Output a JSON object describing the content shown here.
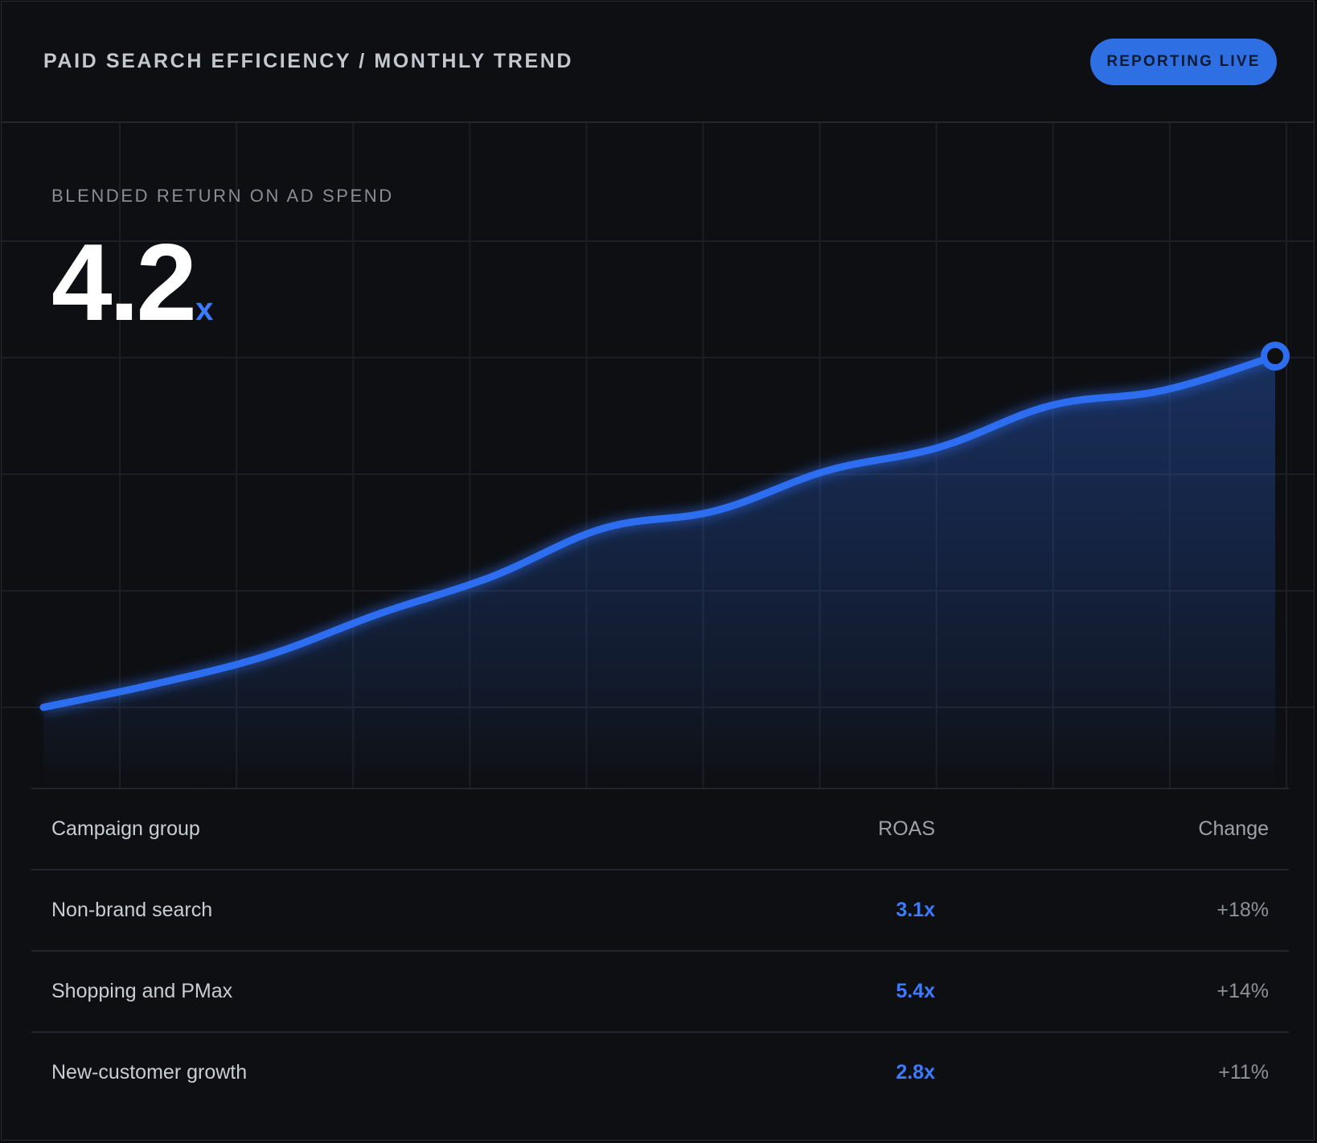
{
  "header": {
    "title": "PAID SEARCH EFFICIENCY / MONTHLY TREND",
    "badge_label": "REPORTING LIVE"
  },
  "kpi": {
    "label": "BLENDED RETURN ON AD SPEND",
    "value": "4.2",
    "unit": "x"
  },
  "colors": {
    "accent": "#2f6fe4",
    "line": "#2d6ef0",
    "background": "#0e0f12",
    "grid": "#1c1e23"
  },
  "chart_data": {
    "type": "area",
    "x": [
      0,
      1,
      2,
      3,
      4,
      5,
      6,
      7,
      8,
      9,
      10,
      11
    ],
    "series": [
      {
        "values": [
          0.0,
          0.28,
          0.62,
          1.12,
          1.56,
          2.14,
          2.35,
          2.83,
          3.11,
          3.61,
          3.79,
          4.2
        ]
      }
    ],
    "ylim": [
      0,
      5
    ],
    "grid": true,
    "legend": "none",
    "endpoint_marker": true
  },
  "table": {
    "columns": [
      "Campaign group",
      "ROAS",
      "Change"
    ],
    "rows": [
      {
        "name": "Non-brand search",
        "roas": "3.1x",
        "change": "+18%"
      },
      {
        "name": "Shopping and PMax",
        "roas": "5.4x",
        "change": "+14%"
      },
      {
        "name": "New-customer growth",
        "roas": "2.8x",
        "change": "+11%"
      }
    ]
  }
}
